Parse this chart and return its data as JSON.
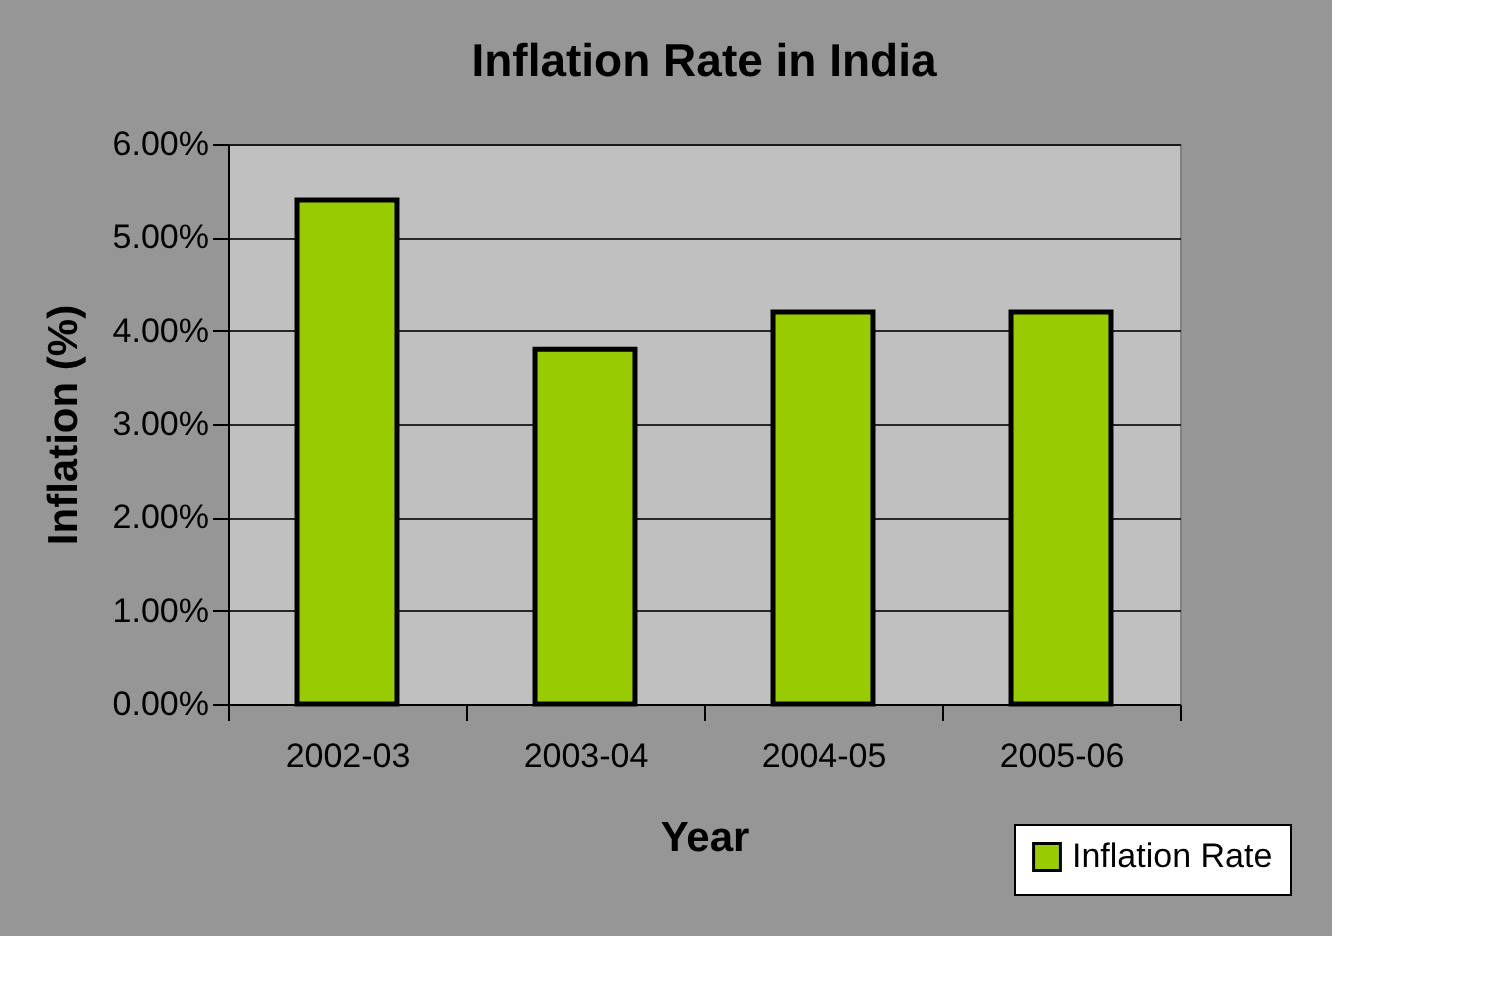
{
  "chart_data": {
    "type": "bar",
    "title": "Inflation Rate in India",
    "xlabel": "Year",
    "ylabel": "Inflation (%)",
    "categories": [
      "2002-03",
      "2003-04",
      "2004-05",
      "2005-06"
    ],
    "series": [
      {
        "name": "Inflation Rate",
        "color": "#99cc00",
        "values": [
          5.4,
          3.8,
          4.2,
          4.2
        ]
      }
    ],
    "ylim": [
      0,
      6
    ],
    "yticks": [
      {
        "value": 0,
        "label": "0.00%"
      },
      {
        "value": 1,
        "label": "1.00%"
      },
      {
        "value": 2,
        "label": "2.00%"
      },
      {
        "value": 3,
        "label": "3.00%"
      },
      {
        "value": 4,
        "label": "4.00%"
      },
      {
        "value": 5,
        "label": "5.00%"
      },
      {
        "value": 6,
        "label": "6.00%"
      }
    ],
    "grid": "y",
    "legend": "bottom right"
  }
}
